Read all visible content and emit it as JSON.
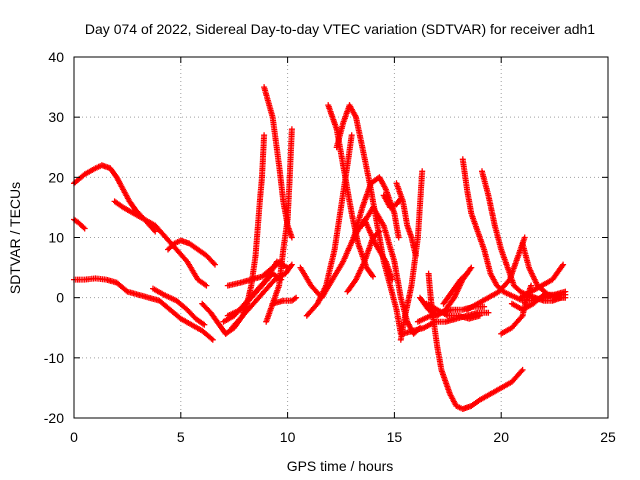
{
  "chart_data": {
    "type": "scatter",
    "title": "Day 074 of 2022, Sidereal Day-to-day VTEC variation (SDTVAR) for receiver adh1",
    "xlabel": "GPS time / hours",
    "ylabel": "SDTVAR / TECUs",
    "xlim": [
      0,
      25
    ],
    "ylim": [
      -20,
      40
    ],
    "xticks": [
      0,
      5,
      10,
      15,
      20,
      25
    ],
    "yticks": [
      -20,
      -10,
      0,
      10,
      20,
      30,
      40
    ],
    "grid": true,
    "legend": "none",
    "marker": "plus",
    "series_color": "#ff0000",
    "series": [
      {
        "points": [
          [
            0,
            19
          ],
          [
            0.5,
            20.5
          ],
          [
            1,
            21.5
          ],
          [
            1.3,
            22
          ],
          [
            1.7,
            21.5
          ],
          [
            2,
            20
          ],
          [
            2.3,
            18
          ],
          [
            2.6,
            16
          ],
          [
            2.9,
            14.5
          ],
          [
            3.3,
            13
          ],
          [
            3.8,
            11
          ]
        ]
      },
      {
        "points": [
          [
            0,
            13
          ],
          [
            0.2,
            12.5
          ],
          [
            0.5,
            11.5
          ]
        ]
      },
      {
        "points": [
          [
            1.9,
            16
          ],
          [
            2.3,
            15
          ],
          [
            2.8,
            14
          ],
          [
            3.3,
            13
          ],
          [
            3.8,
            12
          ],
          [
            4.3,
            10
          ],
          [
            4.8,
            8
          ],
          [
            5.3,
            6
          ],
          [
            5.8,
            3
          ],
          [
            6.2,
            2
          ]
        ]
      },
      {
        "points": [
          [
            4.4,
            8
          ],
          [
            4.7,
            9
          ],
          [
            5,
            9.5
          ],
          [
            5.4,
            9
          ],
          [
            5.8,
            8
          ],
          [
            6.2,
            7
          ],
          [
            6.6,
            5.5
          ]
        ]
      },
      {
        "points": [
          [
            0,
            3
          ],
          [
            0.5,
            3
          ],
          [
            1,
            3.2
          ],
          [
            1.5,
            3
          ],
          [
            2,
            2.5
          ],
          [
            2.5,
            1
          ],
          [
            3,
            0.5
          ],
          [
            3.5,
            0
          ],
          [
            4,
            -0.5
          ],
          [
            4.5,
            -2
          ],
          [
            5,
            -3.5
          ],
          [
            5.5,
            -4.5
          ],
          [
            6,
            -5.5
          ],
          [
            6.5,
            -7
          ]
        ]
      },
      {
        "points": [
          [
            3.7,
            1.5
          ],
          [
            4.2,
            0.5
          ],
          [
            4.8,
            -0.5
          ],
          [
            5.3,
            -2
          ],
          [
            5.7,
            -3.5
          ],
          [
            6.1,
            -4.5
          ]
        ]
      },
      {
        "points": [
          [
            6,
            -1
          ],
          [
            6.4,
            -2.5
          ],
          [
            6.8,
            -4.5
          ],
          [
            7.1,
            -6
          ]
        ]
      },
      {
        "points": [
          [
            7.1,
            -6
          ],
          [
            7.5,
            -5
          ],
          [
            7.9,
            -3
          ],
          [
            8.1,
            -1
          ],
          [
            8.3,
            2
          ],
          [
            8.5,
            7
          ],
          [
            8.7,
            16
          ],
          [
            8.8,
            20
          ],
          [
            8.9,
            27
          ]
        ]
      },
      {
        "points": [
          [
            7,
            -4
          ],
          [
            7.5,
            -3
          ],
          [
            8,
            -1
          ],
          [
            8.5,
            1
          ],
          [
            9,
            3
          ],
          [
            9.5,
            6
          ],
          [
            10,
            5
          ]
        ]
      },
      {
        "points": [
          [
            7.2,
            -3
          ],
          [
            7.8,
            -2
          ],
          [
            8.3,
            0
          ],
          [
            8.8,
            2
          ],
          [
            9.3,
            4
          ],
          [
            9.7,
            3
          ]
        ]
      },
      {
        "points": [
          [
            7.2,
            2
          ],
          [
            7.8,
            2.5
          ],
          [
            8.3,
            3
          ],
          [
            8.8,
            3.5
          ],
          [
            9.3,
            5
          ],
          [
            9.7,
            6
          ]
        ]
      },
      {
        "points": [
          [
            7.4,
            -5
          ],
          [
            7.9,
            -3
          ],
          [
            8.4,
            -1
          ],
          [
            8.9,
            1
          ],
          [
            9.4,
            3
          ],
          [
            9.9,
            4
          ],
          [
            10.2,
            5.5
          ]
        ]
      },
      {
        "points": [
          [
            8.9,
            35
          ],
          [
            9.3,
            30
          ],
          [
            9.6,
            22
          ],
          [
            9.8,
            16
          ],
          [
            10,
            12
          ],
          [
            10.2,
            10
          ]
        ]
      },
      {
        "points": [
          [
            9,
            -4
          ],
          [
            9.3,
            -1
          ],
          [
            9.6,
            2
          ],
          [
            9.8,
            8
          ],
          [
            10,
            13
          ],
          [
            10.1,
            20
          ],
          [
            10.2,
            28
          ]
        ]
      },
      {
        "points": [
          [
            9.3,
            -1
          ],
          [
            9.8,
            -0.5
          ],
          [
            10.2,
            -0.5
          ],
          [
            10.4,
            0
          ]
        ]
      },
      {
        "points": [
          [
            10.9,
            -3
          ],
          [
            11.4,
            -1
          ],
          [
            11.8,
            2
          ],
          [
            12.2,
            8
          ],
          [
            12.5,
            15
          ],
          [
            12.8,
            22
          ],
          [
            13,
            27
          ]
        ]
      },
      {
        "points": [
          [
            11.9,
            32
          ],
          [
            12.3,
            28
          ],
          [
            12.7,
            20
          ],
          [
            13,
            14
          ],
          [
            13.3,
            9
          ],
          [
            13.7,
            5
          ],
          [
            14,
            3.5
          ]
        ]
      },
      {
        "points": [
          [
            12.3,
            25
          ],
          [
            12.6,
            29
          ],
          [
            12.9,
            32
          ],
          [
            13.2,
            30
          ],
          [
            13.5,
            25
          ],
          [
            13.9,
            18
          ],
          [
            14.2,
            12
          ],
          [
            14.5,
            6
          ],
          [
            14.8,
            2
          ],
          [
            15.1,
            -2
          ],
          [
            15.3,
            -6
          ]
        ]
      },
      {
        "points": [
          [
            10.6,
            5
          ],
          [
            11.1,
            2
          ],
          [
            11.6,
            0
          ],
          [
            12.1,
            3
          ],
          [
            12.6,
            6
          ],
          [
            13.1,
            10
          ],
          [
            13.6,
            13
          ],
          [
            14.1,
            9
          ],
          [
            14.6,
            6
          ],
          [
            14.9,
            3
          ]
        ]
      },
      {
        "points": [
          [
            12.8,
            1
          ],
          [
            13.2,
            3
          ],
          [
            13.6,
            6
          ],
          [
            14,
            10
          ],
          [
            14.3,
            11
          ]
        ]
      },
      {
        "points": [
          [
            13.1,
            10
          ],
          [
            13.5,
            15
          ],
          [
            13.9,
            19
          ],
          [
            14.3,
            20
          ],
          [
            14.6,
            18
          ],
          [
            15,
            14
          ],
          [
            15.2,
            10
          ]
        ]
      },
      {
        "points": [
          [
            14.5,
            17
          ],
          [
            14.8,
            15
          ],
          [
            15.1,
            15.5
          ],
          [
            15.3,
            16.5
          ]
        ]
      },
      {
        "points": [
          [
            13.5,
            12
          ],
          [
            14,
            15
          ],
          [
            14.5,
            12
          ],
          [
            15,
            6
          ],
          [
            15.3,
            0
          ],
          [
            15.6,
            -4
          ],
          [
            15.9,
            -6
          ],
          [
            16.2,
            -5
          ]
        ]
      },
      {
        "points": [
          [
            15.1,
            19
          ],
          [
            15.4,
            16
          ],
          [
            15.6,
            12
          ],
          [
            15.8,
            10
          ],
          [
            16,
            7
          ]
        ]
      },
      {
        "points": [
          [
            15.3,
            -7
          ],
          [
            15.5,
            -3
          ],
          [
            15.8,
            2
          ],
          [
            16.1,
            10
          ],
          [
            16.3,
            21
          ]
        ]
      },
      {
        "points": [
          [
            15.4,
            -6
          ],
          [
            15.9,
            -5.5
          ],
          [
            16.4,
            -5
          ],
          [
            16.9,
            -4
          ],
          [
            17.4,
            -4
          ],
          [
            17.9,
            -3.5
          ],
          [
            18.4,
            -3
          ],
          [
            18.9,
            -2.5
          ],
          [
            19.4,
            -2.5
          ]
        ]
      },
      {
        "points": [
          [
            16.1,
            -4
          ],
          [
            16.7,
            -3
          ],
          [
            17.2,
            -2.5
          ],
          [
            17.7,
            -2
          ],
          [
            18.2,
            -2
          ],
          [
            18.7,
            -1.5
          ],
          [
            19.2,
            -1.5
          ]
        ]
      },
      {
        "points": [
          [
            16.5,
            -1
          ],
          [
            17,
            -2
          ],
          [
            17.5,
            -3
          ],
          [
            18,
            -3
          ],
          [
            18.5,
            -3.5
          ],
          [
            19,
            -3
          ]
        ]
      },
      {
        "points": [
          [
            16.6,
            4
          ],
          [
            16.7,
            0
          ],
          [
            16.8,
            -3
          ],
          [
            17,
            -8
          ],
          [
            17.2,
            -12
          ],
          [
            17.4,
            -14
          ],
          [
            17.6,
            -16
          ],
          [
            17.9,
            -18
          ],
          [
            18.2,
            -18.5
          ],
          [
            18.6,
            -18
          ],
          [
            19,
            -17
          ],
          [
            19.5,
            -16
          ],
          [
            20,
            -15
          ],
          [
            20.5,
            -14
          ],
          [
            21,
            -12
          ]
        ]
      },
      {
        "points": [
          [
            16.2,
            0
          ],
          [
            16.6,
            -2
          ],
          [
            17,
            -3
          ],
          [
            17.4,
            -2
          ],
          [
            17.8,
            0
          ],
          [
            18.2,
            3
          ],
          [
            18.6,
            5
          ]
        ]
      },
      {
        "points": [
          [
            17.3,
            -1
          ],
          [
            17.7,
            1
          ],
          [
            18.1,
            3
          ],
          [
            18.4,
            4
          ]
        ]
      },
      {
        "points": [
          [
            18.2,
            23
          ],
          [
            18.4,
            18
          ],
          [
            18.6,
            14
          ],
          [
            18.9,
            11
          ],
          [
            19.2,
            8
          ],
          [
            19.5,
            4
          ],
          [
            19.8,
            2
          ],
          [
            20.1,
            1
          ],
          [
            20.4,
            0.5
          ],
          [
            20.7,
            0
          ],
          [
            21,
            -0.5
          ],
          [
            21.5,
            -0.5
          ],
          [
            22,
            0
          ],
          [
            22.5,
            0.5
          ],
          [
            23,
            0.5
          ]
        ]
      },
      {
        "points": [
          [
            19.1,
            21
          ],
          [
            19.4,
            17
          ],
          [
            19.7,
            12
          ],
          [
            20,
            8
          ],
          [
            20.3,
            5
          ],
          [
            20.6,
            2
          ],
          [
            20.9,
            1
          ],
          [
            21.2,
            0.5
          ],
          [
            21.6,
            0
          ],
          [
            22,
            -0.5
          ],
          [
            22.4,
            -0.5
          ],
          [
            22.8,
            0
          ]
        ]
      },
      {
        "points": [
          [
            18.4,
            -2
          ],
          [
            18.9,
            -1
          ],
          [
            19.4,
            0
          ],
          [
            19.9,
            1
          ],
          [
            20.4,
            3
          ],
          [
            20.8,
            7
          ],
          [
            21.1,
            10
          ]
        ]
      },
      {
        "points": [
          [
            20,
            -6
          ],
          [
            20.5,
            -5
          ],
          [
            21,
            -3
          ],
          [
            21.2,
            0
          ],
          [
            21.4,
            2
          ]
        ]
      },
      {
        "points": [
          [
            20.9,
            0
          ],
          [
            21.4,
            1
          ],
          [
            21.9,
            2
          ],
          [
            22.4,
            3
          ],
          [
            22.9,
            5.5
          ]
        ]
      },
      {
        "points": [
          [
            21,
            9
          ],
          [
            21.3,
            5
          ],
          [
            21.7,
            2
          ],
          [
            22.2,
            0.5
          ],
          [
            22.7,
            0
          ],
          [
            23,
            0
          ]
        ]
      },
      {
        "points": [
          [
            20.5,
            -1
          ],
          [
            21,
            -2
          ],
          [
            21.5,
            -1
          ],
          [
            22,
            0.5
          ],
          [
            22.5,
            0.5
          ],
          [
            23,
            1
          ]
        ]
      }
    ]
  }
}
